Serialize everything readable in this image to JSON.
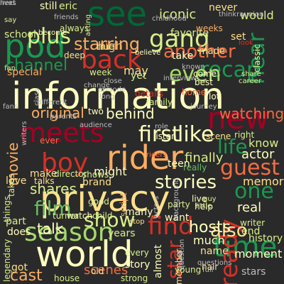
{
  "palette": {
    "background": "#2a2a2a",
    "dark_red": "#a50026",
    "red": "#d73027",
    "orange": "#f46d43",
    "light_orange": "#fdae61",
    "pale_yellow": "#fee08b",
    "cream": "#ffffbf",
    "pale_green": "#d9ef8b",
    "light_green": "#a6d96a",
    "green": "#66bd63",
    "dark_green": "#1a9850",
    "deep_green": "#006837",
    "grey": "#bdbdbd"
  },
  "words": [
    {
      "text": "information",
      "color": "cream"
    },
    {
      "text": "privacy",
      "color": "pale_yellow"
    },
    {
      "text": "world",
      "color": "cream"
    },
    {
      "text": "meets",
      "color": "dark_red"
    },
    {
      "text": "see",
      "color": "deep_green"
    },
    {
      "text": "rider",
      "color": "light_orange"
    },
    {
      "text": "gang",
      "color": "pale_green"
    },
    {
      "text": "pod",
      "color": "dark_green"
    },
    {
      "text": "boy",
      "color": "red"
    },
    {
      "text": "time",
      "color": "dark_green"
    },
    {
      "text": "season",
      "color": "light_green"
    },
    {
      "text": "new",
      "color": "dark_red"
    },
    {
      "text": "show",
      "color": "pale_green"
    },
    {
      "text": "back",
      "color": "red"
    },
    {
      "text": "another",
      "color": "orange"
    },
    {
      "text": "like",
      "color": "cream"
    },
    {
      "text": "recap",
      "color": "dark_green"
    },
    {
      "text": "first",
      "color": "cream"
    },
    {
      "text": "guest",
      "color": "orange"
    },
    {
      "text": "one",
      "color": "dark_green"
    },
    {
      "text": "find",
      "color": "red"
    },
    {
      "text": "stories",
      "color": "cream"
    },
    {
      "text": "plus",
      "color": "pale_green"
    },
    {
      "text": "even",
      "color": "light_green"
    },
    {
      "text": "film",
      "color": "green"
    },
    {
      "text": "ready",
      "color": "red"
    },
    {
      "text": "original",
      "color": "light_orange"
    },
    {
      "text": "star",
      "color": "red"
    },
    {
      "text": "channel",
      "color": "dark_green"
    },
    {
      "text": "hear",
      "color": "dark_green"
    },
    {
      "text": "starring",
      "color": "light_orange"
    },
    {
      "text": "movie",
      "color": "light_orange"
    },
    {
      "text": "life",
      "color": "dark_green"
    },
    {
      "text": "also",
      "color": "pale_yellow"
    },
    {
      "text": "cast",
      "color": "light_orange"
    },
    {
      "text": "scenes",
      "color": "orange"
    },
    {
      "text": "hosts",
      "color": "cream"
    },
    {
      "text": "watching",
      "color": "orange"
    },
    {
      "text": "behind",
      "color": "cream"
    },
    {
      "text": "iconic",
      "color": "pale_green"
    },
    {
      "text": "shares",
      "color": "pale_green"
    },
    {
      "text": "talk",
      "color": "cream"
    },
    {
      "text": "finally",
      "color": "pale_green"
    },
    {
      "text": "would",
      "color": "pale_green"
    },
    {
      "text": "never",
      "color": "pale_yellow"
    },
    {
      "text": "eric",
      "color": "pale_green"
    },
    {
      "text": "still",
      "color": "cream"
    },
    {
      "text": "special",
      "color": "light_orange"
    },
    {
      "text": "may",
      "color": "pale_yellow"
    },
    {
      "text": "might",
      "color": "cream"
    },
    {
      "text": "real",
      "color": "cream"
    },
    {
      "text": "know",
      "color": "pale_green"
    },
    {
      "text": "actor",
      "color": "cream"
    },
    {
      "text": "memories",
      "color": "pale_yellow"
    },
    {
      "text": "make",
      "color": "pale_yellow"
    },
    {
      "text": "much",
      "color": "cream"
    },
    {
      "text": "moment",
      "color": "cream"
    },
    {
      "text": "name",
      "color": "pale_yellow"
    },
    {
      "text": "favorite",
      "color": "pale_green"
    },
    {
      "text": "set",
      "color": "pale_yellow"
    },
    {
      "text": "take",
      "color": "cream"
    },
    {
      "text": "made",
      "color": "pale_yellow"
    },
    {
      "text": "high",
      "color": "light_orange"
    },
    {
      "text": "school",
      "color": "pale_green"
    },
    {
      "text": "love",
      "color": "pale_yellow"
    },
    {
      "text": "part",
      "color": "pale_green"
    },
    {
      "text": "does",
      "color": "cream"
    },
    {
      "text": "got",
      "color": "pale_yellow"
    },
    {
      "text": "legendary",
      "color": "pale_green"
    },
    {
      "text": "years",
      "color": "pale_green"
    },
    {
      "text": "many",
      "color": "cream"
    },
    {
      "text": "want",
      "color": "cream"
    },
    {
      "text": "story",
      "color": "cream"
    },
    {
      "text": "history",
      "color": "pale_green"
    },
    {
      "text": "end",
      "color": "pale_green"
    },
    {
      "text": "live",
      "color": "cream"
    },
    {
      "text": "help",
      "color": "cream"
    },
    {
      "text": "stars",
      "color": "grey"
    },
    {
      "text": "full",
      "color": "grey"
    },
    {
      "text": "old",
      "color": "pale_yellow"
    },
    {
      "text": "strong",
      "color": "pale_green"
    },
    {
      "text": "house",
      "color": "pale_green"
    },
    {
      "text": "almost",
      "color": "cream"
    },
    {
      "text": "member",
      "color": "pale_yellow"
    },
    {
      "text": "every",
      "color": "pale_green"
    },
    {
      "text": "talks",
      "color": "pale_yellow"
    },
    {
      "text": "brand",
      "color": "pale_yellow"
    },
    {
      "text": "shows",
      "color": "pale_green"
    },
    {
      "text": "script",
      "color": "light_orange"
    },
    {
      "text": "good",
      "color": "pale_green"
    },
    {
      "text": "watch",
      "color": "cream"
    },
    {
      "text": "child",
      "color": "pale_green"
    },
    {
      "text": "writer",
      "color": "pale_green"
    },
    {
      "text": "hair",
      "color": "pale_yellow"
    },
    {
      "text": "scene",
      "color": "pale_yellow"
    },
    {
      "text": "listen",
      "color": "cream"
    },
    {
      "text": "family",
      "color": "pale_green"
    },
    {
      "text": "lot",
      "color": "cream"
    },
    {
      "text": "come",
      "color": "cream"
    },
    {
      "text": "best",
      "color": "cream"
    },
    {
      "text": "deep",
      "color": "pale_yellow"
    },
    {
      "text": "true",
      "color": "pale_green"
    },
    {
      "text": "week",
      "color": "pale_green"
    },
    {
      "text": "weeks",
      "color": "light_orange"
    },
    {
      "text": "classic",
      "color": "pale_green"
    },
    {
      "text": "acting",
      "color": "pale_green"
    },
    {
      "text": "always",
      "color": "pale_green"
    },
    {
      "text": "details",
      "color": "red"
    },
    {
      "text": "two",
      "color": "cream"
    },
    {
      "text": "director",
      "color": "pale_green"
    },
    {
      "text": "teen",
      "color": "cream"
    },
    {
      "text": "really",
      "color": "green"
    },
    {
      "text": "ever",
      "color": "orange"
    },
    {
      "text": "takes",
      "color": "pale_green"
    },
    {
      "text": "things",
      "color": "pale_green"
    },
    {
      "text": "turner",
      "color": "pale_green"
    },
    {
      "text": "young",
      "color": "pale_green"
    },
    {
      "text": "riders",
      "color": "orange"
    },
    {
      "text": "become",
      "color": "cream"
    },
    {
      "text": "say",
      "color": "pale_green"
    },
    {
      "text": "home",
      "color": "orange"
    },
    {
      "text": "share",
      "color": "pale_green"
    },
    {
      "text": "career",
      "color": "pale_green"
    },
    {
      "text": "little",
      "color": "pale_green"
    },
    {
      "text": "believe",
      "color": "cream"
    },
    {
      "text": "party",
      "color": "pale_green"
    },
    {
      "text": "stop",
      "color": "pale_yellow"
    },
    {
      "text": "yet",
      "color": "pale_green"
    },
    {
      "text": "look",
      "color": "red"
    },
    {
      "text": "right",
      "color": "pale_green"
    },
    {
      "text": "guy",
      "color": "pale_green"
    },
    {
      "text": "fan",
      "color": "pale_green"
    },
    {
      "text": "known",
      "color": "grey"
    },
    {
      "text": "friends",
      "color": "grey"
    },
    {
      "text": "fans",
      "color": "grey"
    },
    {
      "text": "thinkraunion",
      "color": "grey"
    },
    {
      "text": "childhood",
      "color": "grey"
    },
    {
      "text": "writers",
      "color": "grey"
    },
    {
      "text": "different",
      "color": "grey"
    },
    {
      "text": "audience",
      "color": "grey"
    },
    {
      "text": "actors",
      "color": "grey"
    },
    {
      "text": "question",
      "color": "grey"
    },
    {
      "text": "questions",
      "color": "grey"
    },
    {
      "text": "background",
      "color": "grey"
    },
    {
      "text": "interview",
      "color": "grey"
    },
    {
      "text": "parents",
      "color": "grey"
    },
    {
      "text": "episode",
      "color": "grey"
    },
    {
      "text": "long",
      "color": "grey"
    },
    {
      "text": "class",
      "color": "grey"
    },
    {
      "text": "bad",
      "color": "grey"
    },
    {
      "text": "change",
      "color": "grey"
    },
    {
      "text": "journey",
      "color": "grey"
    },
    {
      "text": "close",
      "color": "grey"
    },
    {
      "text": "role",
      "color": "grey"
    },
    {
      "text": "next",
      "color": "grey"
    },
    {
      "text": "lives",
      "color": "grey"
    }
  ]
}
